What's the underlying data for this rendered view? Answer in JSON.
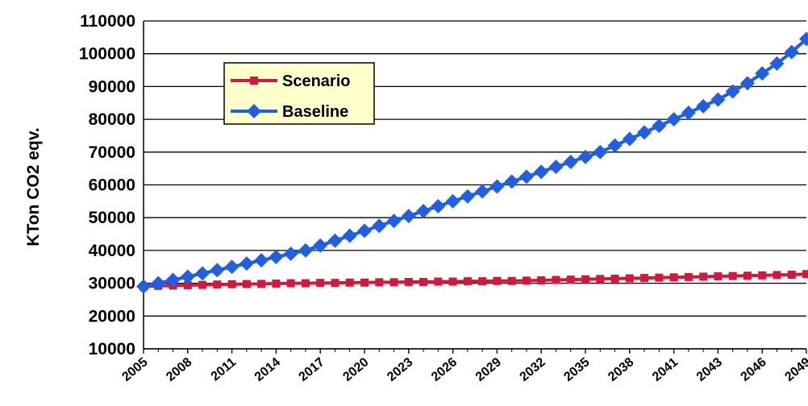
{
  "chart_data": {
    "type": "line",
    "ylabel": "KTon CO2 eqv.",
    "ylim": [
      10000,
      110000
    ],
    "yticks": [
      10000,
      20000,
      30000,
      40000,
      50000,
      60000,
      70000,
      80000,
      90000,
      100000,
      110000
    ],
    "x_tick_labels": [
      "2005",
      "2008",
      "2011",
      "2014",
      "2017",
      "2020",
      "2023",
      "2026",
      "2029",
      "2032",
      "2035",
      "2038",
      "2041",
      "2043",
      "2046",
      "2049"
    ],
    "grid": true,
    "legend_position": "top-left",
    "x": [
      2005,
      2006,
      2007,
      2008,
      2009,
      2010,
      2011,
      2012,
      2013,
      2014,
      2015,
      2016,
      2017,
      2018,
      2019,
      2020,
      2021,
      2022,
      2023,
      2024,
      2025,
      2026,
      2027,
      2028,
      2029,
      2030,
      2031,
      2032,
      2033,
      2034,
      2035,
      2036,
      2037,
      2038,
      2039,
      2040,
      2041,
      2042,
      2043,
      2044,
      2045,
      2046,
      2047,
      2048,
      2049,
      2050
    ],
    "series": [
      {
        "name": "Scenario",
        "color": "#d4173d",
        "marker": "square",
        "values": [
          29000,
          29200,
          29300,
          29400,
          29500,
          29600,
          29700,
          29750,
          29800,
          29900,
          30000,
          30000,
          30100,
          30100,
          30200,
          30200,
          30300,
          30300,
          30400,
          30400,
          30500,
          30500,
          30600,
          30600,
          30700,
          30700,
          30800,
          30900,
          31000,
          31100,
          31200,
          31300,
          31400,
          31500,
          31600,
          31700,
          31800,
          31900,
          32000,
          32100,
          32200,
          32300,
          32400,
          32500,
          32600,
          32800
        ]
      },
      {
        "name": "Baseline",
        "color": "#1f5fe0",
        "marker": "diamond",
        "values": [
          29000,
          30000,
          31000,
          32000,
          33000,
          34000,
          35000,
          36000,
          37000,
          38000,
          39000,
          40000,
          41500,
          43000,
          44500,
          46000,
          47500,
          49000,
          50500,
          52000,
          53500,
          55000,
          56500,
          58000,
          59500,
          61000,
          62500,
          64000,
          65500,
          67000,
          68500,
          70000,
          72000,
          74000,
          76000,
          78000,
          80000,
          82000,
          84000,
          86000,
          88500,
          91000,
          94000,
          97000,
          100500,
          104500
        ]
      }
    ]
  }
}
